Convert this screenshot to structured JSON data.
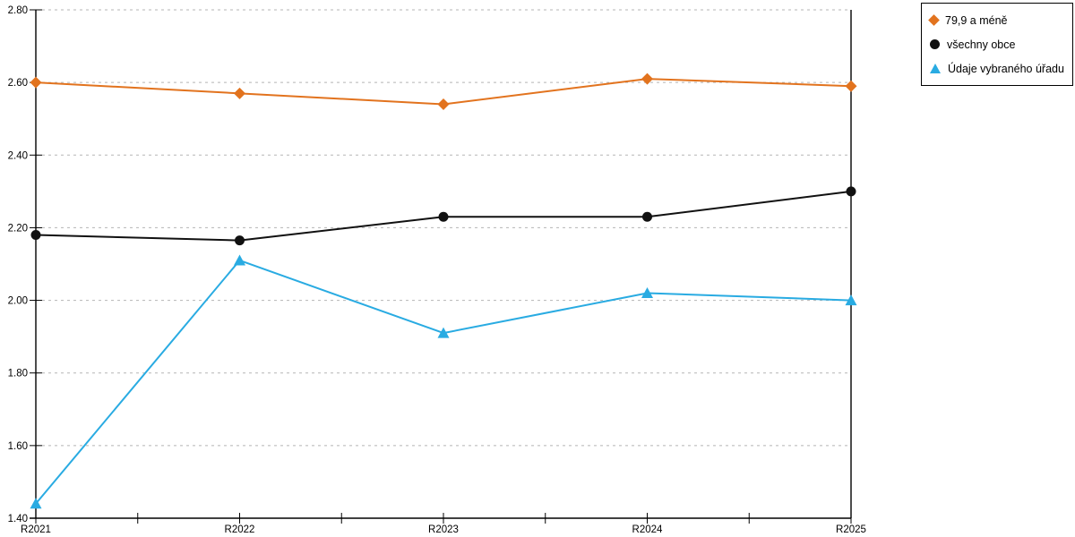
{
  "chart_data": {
    "type": "line",
    "title": "",
    "categories": [
      "R2021",
      "R2022",
      "R2023",
      "R2024",
      "R2025"
    ],
    "series": [
      {
        "name": "79,9 a méně",
        "color": "#E2731E",
        "marker": "diamond",
        "values": [
          2.6,
          2.57,
          2.54,
          2.61,
          2.59
        ]
      },
      {
        "name": "všechny obce",
        "color": "#111111",
        "marker": "circle",
        "values": [
          2.18,
          2.165,
          2.23,
          2.23,
          2.3
        ]
      },
      {
        "name": "Údaje vybraného úřadu",
        "color": "#29ABE2",
        "marker": "triangle",
        "values": [
          1.44,
          2.11,
          1.91,
          2.02,
          2.0
        ]
      }
    ],
    "xlabel": "",
    "ylabel": "",
    "ylim": [
      1.4,
      2.8
    ],
    "y_tick_step": 0.2,
    "y_tick_labels": [
      "1.40",
      "1.60",
      "1.80",
      "2.00",
      "2.20",
      "2.40",
      "2.60",
      "2.80"
    ],
    "grid": "horizontal dotted",
    "grid_color": "#B5B5B5",
    "axis_color": "#000000",
    "legend_position": "outside top-right"
  }
}
